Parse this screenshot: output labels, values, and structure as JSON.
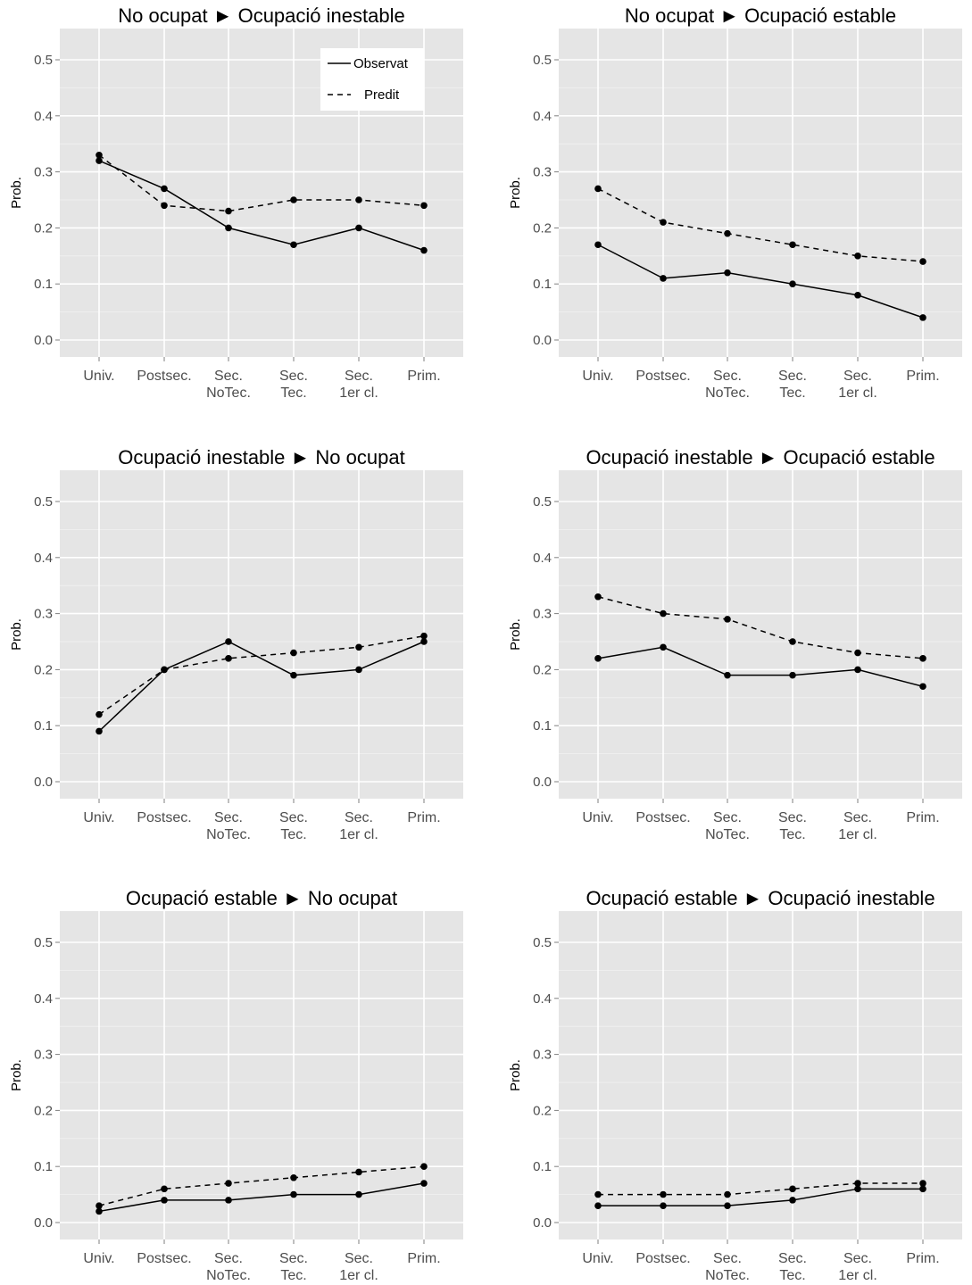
{
  "chart_data": [
    {
      "type": "line",
      "title": "No ocupat ► Ocupació inestable",
      "ylabel": "Prob.",
      "ylim": [
        0,
        0.5
      ],
      "yticks": [
        "0.0",
        "0.1",
        "0.2",
        "0.3",
        "0.4",
        "0.5"
      ],
      "categories": [
        [
          "Univ."
        ],
        [
          "Postsec."
        ],
        [
          "Sec.",
          "NoTec."
        ],
        [
          "Sec.",
          "Tec."
        ],
        [
          "Sec.",
          "1er cl."
        ],
        [
          "Prim."
        ]
      ],
      "legend": {
        "position": "top-right",
        "entries": [
          "Observat",
          "Predit"
        ]
      },
      "series": [
        {
          "name": "Observat",
          "style": "solid",
          "values": [
            0.32,
            0.27,
            0.2,
            0.17,
            0.2,
            0.16
          ]
        },
        {
          "name": "Predit",
          "style": "dashed",
          "values": [
            0.33,
            0.24,
            0.23,
            0.25,
            0.25,
            0.24
          ]
        }
      ]
    },
    {
      "type": "line",
      "title": "No ocupat ► Ocupació estable",
      "ylabel": "Prob.",
      "ylim": [
        0,
        0.5
      ],
      "yticks": [
        "0.0",
        "0.1",
        "0.2",
        "0.3",
        "0.4",
        "0.5"
      ],
      "categories": [
        [
          "Univ."
        ],
        [
          "Postsec."
        ],
        [
          "Sec.",
          "NoTec."
        ],
        [
          "Sec.",
          "Tec."
        ],
        [
          "Sec.",
          "1er cl."
        ],
        [
          "Prim."
        ]
      ],
      "series": [
        {
          "name": "Observat",
          "style": "solid",
          "values": [
            0.17,
            0.11,
            0.12,
            0.1,
            0.08,
            0.04
          ]
        },
        {
          "name": "Predit",
          "style": "dashed",
          "values": [
            0.27,
            0.21,
            0.19,
            0.17,
            0.15,
            0.14
          ]
        }
      ]
    },
    {
      "type": "line",
      "title": "Ocupació inestable ► No ocupat",
      "ylabel": "Prob.",
      "ylim": [
        0,
        0.5
      ],
      "yticks": [
        "0.0",
        "0.1",
        "0.2",
        "0.3",
        "0.4",
        "0.5"
      ],
      "categories": [
        [
          "Univ."
        ],
        [
          "Postsec."
        ],
        [
          "Sec.",
          "NoTec."
        ],
        [
          "Sec.",
          "Tec."
        ],
        [
          "Sec.",
          "1er cl."
        ],
        [
          "Prim."
        ]
      ],
      "series": [
        {
          "name": "Observat",
          "style": "solid",
          "values": [
            0.09,
            0.2,
            0.25,
            0.19,
            0.2,
            0.25
          ]
        },
        {
          "name": "Predit",
          "style": "dashed",
          "values": [
            0.12,
            0.2,
            0.22,
            0.23,
            0.24,
            0.26
          ]
        }
      ]
    },
    {
      "type": "line",
      "title": "Ocupació inestable ► Ocupació estable",
      "ylabel": "Prob.",
      "ylim": [
        0,
        0.5
      ],
      "yticks": [
        "0.0",
        "0.1",
        "0.2",
        "0.3",
        "0.4",
        "0.5"
      ],
      "categories": [
        [
          "Univ."
        ],
        [
          "Postsec."
        ],
        [
          "Sec.",
          "NoTec."
        ],
        [
          "Sec.",
          "Tec."
        ],
        [
          "Sec.",
          "1er cl."
        ],
        [
          "Prim."
        ]
      ],
      "series": [
        {
          "name": "Observat",
          "style": "solid",
          "values": [
            0.22,
            0.24,
            0.19,
            0.19,
            0.2,
            0.17
          ]
        },
        {
          "name": "Predit",
          "style": "dashed",
          "values": [
            0.33,
            0.3,
            0.29,
            0.25,
            0.23,
            0.22
          ]
        }
      ]
    },
    {
      "type": "line",
      "title": "Ocupació estable ► No ocupat",
      "ylabel": "Prob.",
      "ylim": [
        0,
        0.5
      ],
      "yticks": [
        "0.0",
        "0.1",
        "0.2",
        "0.3",
        "0.4",
        "0.5"
      ],
      "categories": [
        [
          "Univ."
        ],
        [
          "Postsec."
        ],
        [
          "Sec.",
          "NoTec."
        ],
        [
          "Sec.",
          "Tec."
        ],
        [
          "Sec.",
          "1er cl."
        ],
        [
          "Prim."
        ]
      ],
      "series": [
        {
          "name": "Observat",
          "style": "solid",
          "values": [
            0.02,
            0.04,
            0.04,
            0.05,
            0.05,
            0.07
          ]
        },
        {
          "name": "Predit",
          "style": "dashed",
          "values": [
            0.03,
            0.06,
            0.07,
            0.08,
            0.09,
            0.1
          ]
        }
      ]
    },
    {
      "type": "line",
      "title": "Ocupació estable ► Ocupació inestable",
      "ylabel": "Prob.",
      "ylim": [
        0,
        0.5
      ],
      "yticks": [
        "0.0",
        "0.1",
        "0.2",
        "0.3",
        "0.4",
        "0.5"
      ],
      "categories": [
        [
          "Univ."
        ],
        [
          "Postsec."
        ],
        [
          "Sec.",
          "NoTec."
        ],
        [
          "Sec.",
          "Tec."
        ],
        [
          "Sec.",
          "1er cl."
        ],
        [
          "Prim."
        ]
      ],
      "series": [
        {
          "name": "Observat",
          "style": "solid",
          "values": [
            0.03,
            0.03,
            0.03,
            0.04,
            0.06,
            0.06
          ]
        },
        {
          "name": "Predit",
          "style": "dashed",
          "values": [
            0.05,
            0.05,
            0.05,
            0.06,
            0.07,
            0.07
          ]
        }
      ]
    }
  ]
}
